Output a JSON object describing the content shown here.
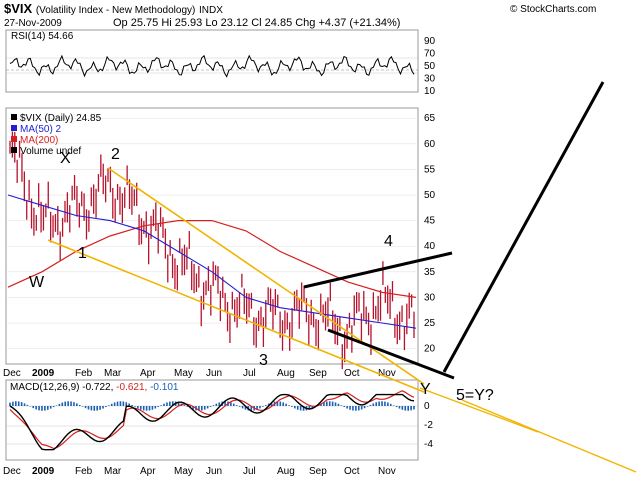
{
  "header": {
    "symbol": "$VIX",
    "subtitle": "(Volatility Index - New Methodology)",
    "exchange": "INDX",
    "date": "27-Nov-2009",
    "ohlc": "Op 25.75  Hi 25.93  Lo 23.12  Cl 24.85  Chg +4.37 (+21.34%)",
    "credit": "© StockCharts.com"
  },
  "rsi": {
    "label": "RSI(14) 54.66",
    "ticks": [
      "90",
      "70",
      "50",
      "30",
      "10"
    ]
  },
  "price_panel": {
    "legend": [
      "$VIX (Daily) 24.85",
      "MA(50) 2",
      "MA(200)",
      "Volume undef"
    ],
    "legend_colors": [
      "#000000",
      "#1f1fd6",
      "#d61f1f",
      "#000000"
    ],
    "ticks": [
      "65",
      "60",
      "55",
      "50",
      "45",
      "40",
      "35",
      "30",
      "25",
      "20"
    ]
  },
  "macd": {
    "label_a": "MACD(12,26,9)",
    "label_b": "-0.722,",
    "label_c": "-0.621,",
    "label_d": "-0.101",
    "ticks": [
      "0",
      "-2",
      "-4"
    ]
  },
  "x_axis": {
    "labels": [
      "Dec",
      "2009",
      "Feb",
      "Mar",
      "Apr",
      "May",
      "Jun",
      "Jul",
      "Aug",
      "Sep",
      "Oct",
      "Nov"
    ]
  },
  "annotations": [
    "X",
    "2",
    "1",
    "W",
    "3",
    "4",
    "Y",
    "5=Y?"
  ],
  "colors": {
    "price_bars": "#b5122b",
    "ma50": "#1f1fd6",
    "ma200": "#d61f1f",
    "trendline": "#f2b400",
    "wedge": "#000000",
    "histogram": "#1a5fb4"
  },
  "chart_data": {
    "type": "line",
    "title": "$VIX (Volatility Index - New Methodology)",
    "xlabel": "",
    "ylabel": "",
    "ylim": [
      17,
      67
    ],
    "x": [
      "Dec",
      "2009",
      "Feb",
      "Mar",
      "Apr",
      "May",
      "Jun",
      "Jul",
      "Aug",
      "Sep",
      "Oct",
      "Nov",
      "Nov 27"
    ],
    "series": [
      {
        "name": "$VIX (Daily)",
        "values": [
          58,
          44,
          47,
          52,
          45,
          37,
          31,
          27,
          26,
          27,
          23,
          29,
          24.85
        ]
      },
      {
        "name": "MA(50)",
        "values": [
          50,
          48,
          46,
          45,
          43,
          39,
          35,
          30,
          28,
          27,
          26,
          25,
          24
        ]
      },
      {
        "name": "MA(200)",
        "values": [
          32,
          35,
          39,
          42,
          44,
          45,
          45,
          43,
          39,
          36,
          33,
          31,
          30
        ]
      }
    ]
  }
}
